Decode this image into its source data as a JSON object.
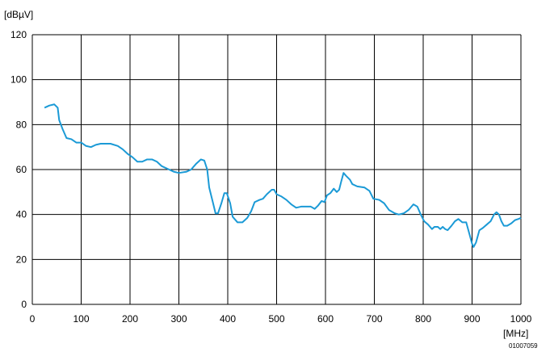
{
  "chart_data": {
    "type": "line",
    "y_label": "[dBµV]",
    "x_label": "[MHz]",
    "code": "01007059",
    "xlim": [
      0,
      1000
    ],
    "ylim": [
      0,
      120
    ],
    "xticks": [
      0,
      100,
      200,
      300,
      400,
      500,
      600,
      700,
      800,
      900,
      1000
    ],
    "yticks": [
      0,
      20,
      40,
      60,
      80,
      100,
      120
    ],
    "grid": true,
    "color": "#1b9ad6",
    "x": [
      25,
      35,
      45,
      52,
      55,
      62,
      70,
      80,
      90,
      100,
      110,
      120,
      130,
      140,
      160,
      175,
      185,
      195,
      205,
      215,
      225,
      235,
      245,
      255,
      265,
      280,
      290,
      300,
      315,
      325,
      335,
      345,
      352,
      358,
      362,
      370,
      375,
      380,
      387,
      393,
      398,
      405,
      410,
      420,
      430,
      440,
      448,
      455,
      465,
      472,
      480,
      490,
      495,
      500,
      510,
      520,
      530,
      540,
      550,
      560,
      570,
      578,
      585,
      592,
      598,
      603,
      610,
      617,
      623,
      628,
      632,
      637,
      643,
      650,
      655,
      665,
      680,
      690,
      698,
      710,
      720,
      730,
      742,
      750,
      760,
      770,
      780,
      788,
      795,
      802,
      810,
      818,
      823,
      830,
      835,
      840,
      845,
      850,
      858,
      865,
      872,
      880,
      888,
      895,
      900,
      903,
      908,
      915,
      922,
      930,
      938,
      945,
      950,
      955,
      960,
      965,
      972,
      980,
      988,
      995,
      1000
    ],
    "values": [
      87.5,
      88.5,
      89,
      87.5,
      82,
      78,
      74,
      73.5,
      72,
      72,
      70.5,
      70,
      71,
      71.5,
      71.5,
      70.5,
      69,
      67,
      65.5,
      63.5,
      63.5,
      64.5,
      64.5,
      63.5,
      61.5,
      60,
      59,
      58.5,
      59,
      60,
      62.5,
      64.5,
      64,
      60,
      52,
      45,
      40.5,
      40.5,
      45,
      49.5,
      49.5,
      45,
      39,
      36.5,
      36.5,
      38.5,
      41.5,
      45.5,
      46.5,
      47,
      49,
      51,
      51,
      49,
      48,
      46.5,
      44.5,
      43,
      43.5,
      43.5,
      43.5,
      42.5,
      44,
      46,
      45.5,
      48.5,
      49.5,
      51.5,
      50,
      51,
      54.5,
      58.5,
      57,
      55.5,
      53.5,
      52.5,
      52,
      50.5,
      47,
      46.5,
      45,
      42,
      40.5,
      40,
      40.5,
      42,
      44.5,
      43.5,
      40,
      37,
      35.5,
      33.5,
      34.5,
      34.5,
      33.5,
      34.5,
      33.5,
      33,
      35,
      37,
      38,
      36.5,
      36.5,
      31,
      27,
      25.5,
      27.5,
      33,
      34,
      35.5,
      37,
      40,
      41,
      40,
      37,
      35,
      35,
      36,
      37.5,
      38,
      38.5
    ]
  }
}
